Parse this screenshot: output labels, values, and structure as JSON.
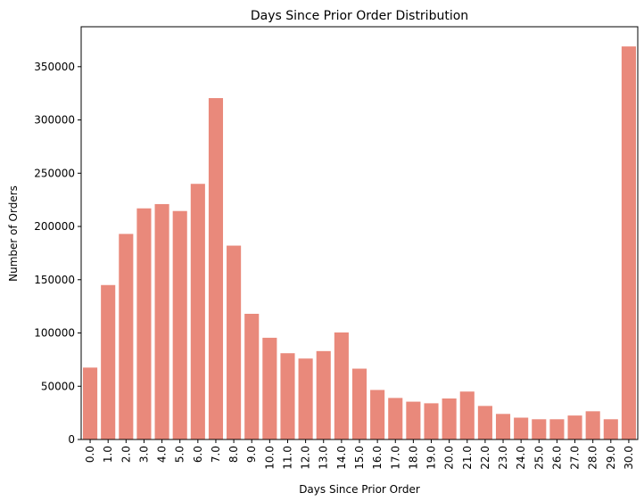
{
  "chart_data": {
    "type": "bar",
    "title": "Days Since Prior Order Distribution",
    "xlabel": "Days Since Prior Order",
    "ylabel": "Number of Orders",
    "categories": [
      "0.0",
      "1.0",
      "2.0",
      "3.0",
      "4.0",
      "5.0",
      "6.0",
      "7.0",
      "8.0",
      "9.0",
      "10.0",
      "11.0",
      "12.0",
      "13.0",
      "14.0",
      "15.0",
      "16.0",
      "17.0",
      "18.0",
      "19.0",
      "20.0",
      "21.0",
      "22.0",
      "23.0",
      "24.0",
      "25.0",
      "26.0",
      "27.0",
      "28.0",
      "29.0",
      "30.0"
    ],
    "values": [
      67500,
      145000,
      193000,
      217000,
      221000,
      214500,
      240000,
      320500,
      182000,
      118000,
      95500,
      81000,
      76000,
      83000,
      100500,
      66500,
      46500,
      39000,
      35500,
      34000,
      38500,
      45000,
      31500,
      24000,
      20500,
      19000,
      19000,
      22500,
      26500,
      19000,
      369000
    ],
    "ylim": [
      0,
      387500
    ],
    "yticks": [
      0,
      50000,
      100000,
      150000,
      200000,
      250000,
      300000,
      350000
    ],
    "ytick_labels": [
      "0",
      "50000",
      "100000",
      "150000",
      "200000",
      "250000",
      "300000",
      "350000"
    ],
    "bar_color": "#e9897b",
    "grid": false,
    "legend": "none"
  }
}
